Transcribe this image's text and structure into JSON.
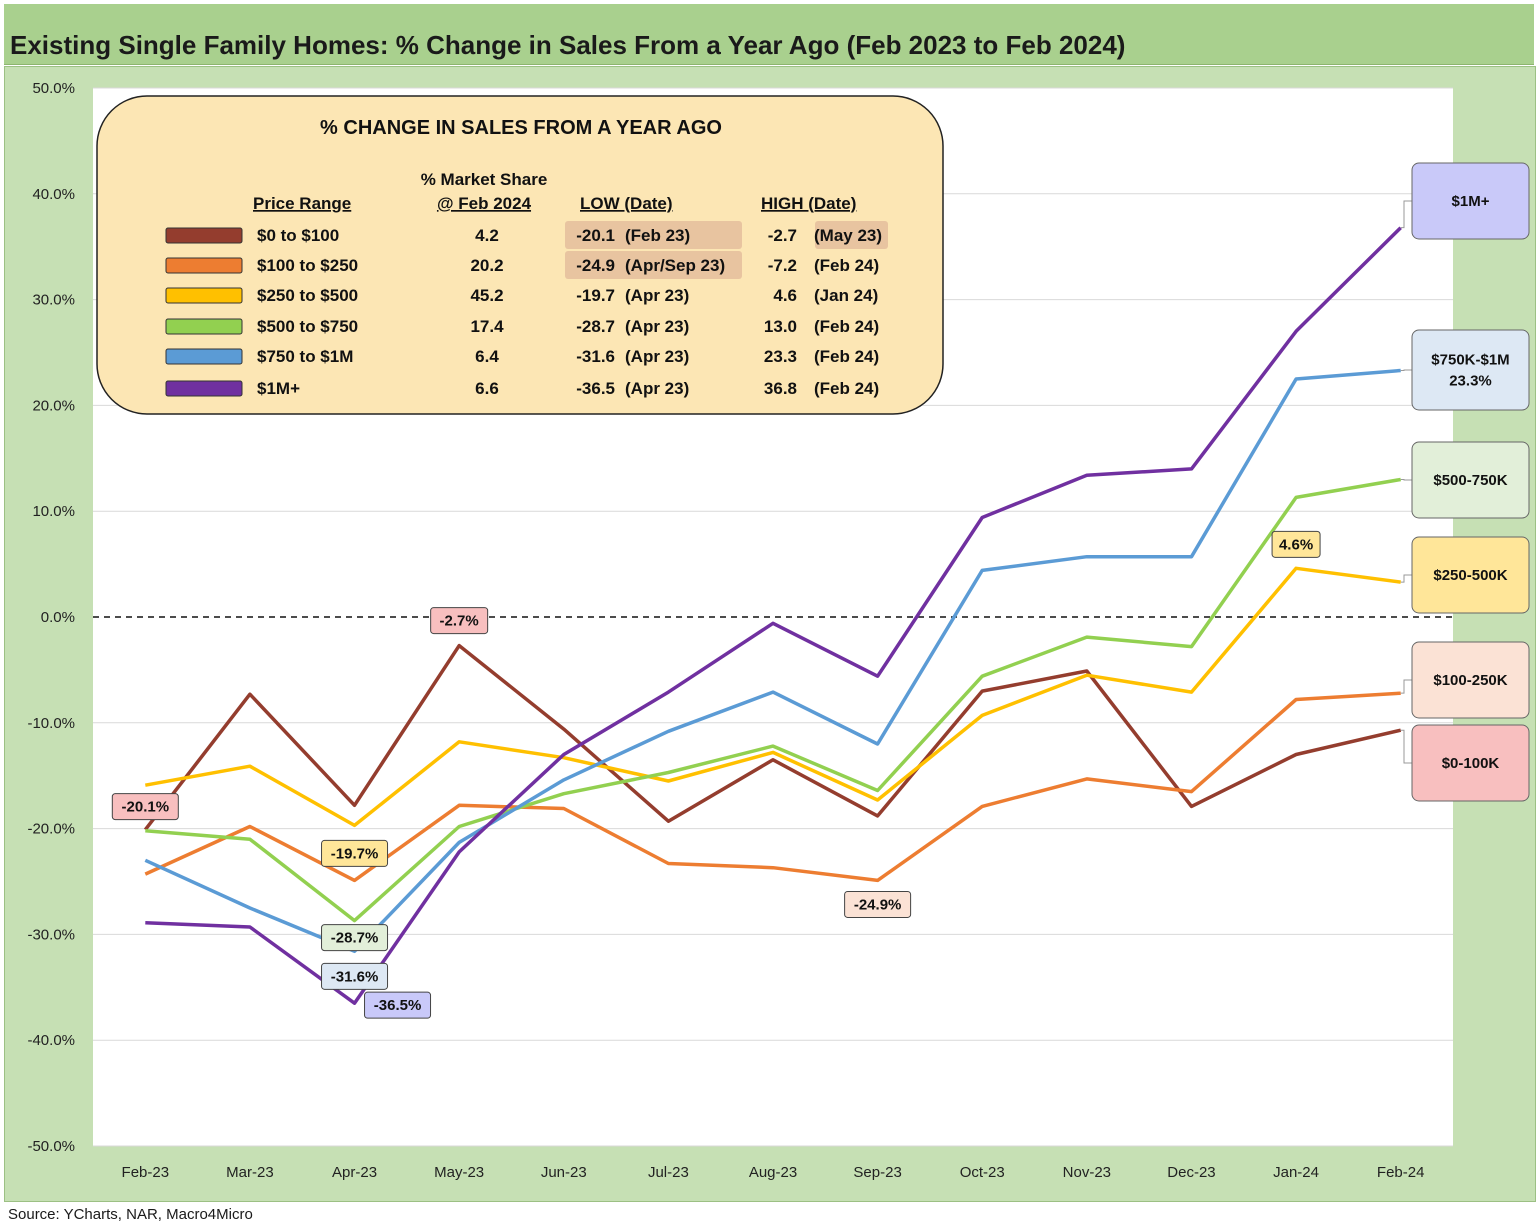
{
  "title": "Existing Single Family Homes: % Change in Sales From a Year Ago (Feb 2023 to Feb 2024)",
  "source": "Source: YCharts, NAR, Macro4Micro",
  "chart_data": {
    "type": "line",
    "categories": [
      "Feb-23",
      "Mar-23",
      "Apr-23",
      "May-23",
      "Jun-23",
      "Jul-23",
      "Aug-23",
      "Sep-23",
      "Oct-23",
      "Nov-23",
      "Dec-23",
      "Jan-24",
      "Feb-24"
    ],
    "ylim": [
      -50,
      50
    ],
    "yticks": [
      50,
      40,
      30,
      20,
      10,
      0,
      -10,
      -20,
      -30,
      -40,
      -50
    ],
    "ytick_labels": [
      "50.0%",
      "40.0%",
      "30.0%",
      "20.0%",
      "10.0%",
      "0.0%",
      "-10.0%",
      "-20.0%",
      "-30.0%",
      "-40.0%",
      "-50.0%"
    ],
    "zero_line": "dashed",
    "series": [
      {
        "name": "$0 to $100",
        "color": "#943d2e",
        "values": [
          -20.1,
          -7.3,
          -17.8,
          -2.7,
          -10.6,
          -19.3,
          -13.5,
          -18.8,
          -7.0,
          -5.1,
          -17.9,
          -13.0,
          -10.7
        ]
      },
      {
        "name": "$100 to $250",
        "color": "#ed7d31",
        "values": [
          -24.3,
          -19.8,
          -24.9,
          -17.8,
          -18.1,
          -23.3,
          -23.7,
          -24.9,
          -17.9,
          -15.3,
          -16.5,
          -7.8,
          -7.2
        ]
      },
      {
        "name": "$250 to $500",
        "color": "#ffc000",
        "values": [
          -15.9,
          -14.1,
          -19.7,
          -11.8,
          -13.3,
          -15.5,
          -12.8,
          -17.3,
          -9.3,
          -5.5,
          -7.1,
          4.6,
          3.3
        ]
      },
      {
        "name": "$500 to $750",
        "color": "#92d050",
        "values": [
          -20.2,
          -21.0,
          -28.7,
          -19.8,
          -16.7,
          -14.7,
          -12.2,
          -16.4,
          -5.6,
          -1.9,
          -2.8,
          11.3,
          13.0
        ]
      },
      {
        "name": "$750 to $1M",
        "color": "#5b9bd5",
        "values": [
          -23.0,
          -27.5,
          -31.6,
          -21.3,
          -15.4,
          -10.8,
          -7.1,
          -12.0,
          4.4,
          5.7,
          5.7,
          22.5,
          23.3
        ]
      },
      {
        "name": "$1M+",
        "color": "#7030a0",
        "values": [
          -28.9,
          -29.3,
          -36.5,
          -22.2,
          -13.0,
          -7.1,
          -0.6,
          -5.6,
          9.4,
          13.4,
          14.0,
          27.0,
          36.8
        ]
      }
    ],
    "point_labels": [
      {
        "series": 0,
        "index": 0,
        "text": "-20.1%",
        "fill": "#f8bfbf"
      },
      {
        "series": 0,
        "index": 3,
        "text": "-2.7%",
        "fill": "#f8bfbf"
      },
      {
        "series": 2,
        "index": 2,
        "text": "-19.7%",
        "fill": "#ffe699"
      },
      {
        "series": 3,
        "index": 2,
        "text": "-28.7%",
        "fill": "#e2efd9"
      },
      {
        "series": 4,
        "index": 2,
        "text": "-31.6%",
        "fill": "#dde8f4"
      },
      {
        "series": 5,
        "index": 2,
        "text": "-36.5%",
        "fill": "#c9c9f9"
      },
      {
        "series": 1,
        "index": 7,
        "text": "-24.9%",
        "fill": "#fbe2d5"
      },
      {
        "series": 2,
        "index": 11,
        "text": "4.6%",
        "fill": "#ffe699"
      }
    ],
    "end_labels": [
      {
        "series": 5,
        "lines": [
          "$1M+"
        ],
        "fill": "#c9c9f9"
      },
      {
        "series": 4,
        "lines": [
          "$750K-$1M",
          "23.3%"
        ],
        "fill": "#dde8f4"
      },
      {
        "series": 3,
        "lines": [
          "$500-750K"
        ],
        "fill": "#e2efd9"
      },
      {
        "series": 2,
        "lines": [
          "$250-500K"
        ],
        "fill": "#ffe699"
      },
      {
        "series": 1,
        "lines": [
          "$100-250K"
        ],
        "fill": "#fbe2d5"
      },
      {
        "series": 0,
        "lines": [
          "$0-100K"
        ],
        "fill": "#f8bfbf"
      }
    ],
    "legend_table": {
      "heading": "% CHANGE IN SALES FROM A YEAR AGO",
      "col_price": "Price Range",
      "col_share_top": "% Market Share",
      "col_share_bottom": "@ Feb 2024",
      "col_low": "LOW  (Date)",
      "col_high": "HIGH  (Date)",
      "rows": [
        {
          "range": "$0 to $100",
          "share": "4.2",
          "low": "-20.1",
          "low_date": "(Feb 23)",
          "high": "-2.7",
          "high_date": "(May 23)",
          "low_hl": true,
          "high_hl": true
        },
        {
          "range": "$100 to $250",
          "share": "20.2",
          "low": "-24.9",
          "low_date": "(Apr/Sep 23)",
          "high": "-7.2",
          "high_date": "(Feb 24)",
          "low_hl": true,
          "high_hl": false
        },
        {
          "range": "$250 to $500",
          "share": "45.2",
          "low": "-19.7",
          "low_date": "(Apr 23)",
          "high": "4.6",
          "high_date": "(Jan 24)",
          "low_hl": false,
          "high_hl": false
        },
        {
          "range": "$500 to $750",
          "share": "17.4",
          "low": "-28.7",
          "low_date": "(Apr 23)",
          "high": "13.0",
          "high_date": "(Feb 24)",
          "low_hl": false,
          "high_hl": false
        },
        {
          "range": "$750 to $1M",
          "share": "6.4",
          "low": "-31.6",
          "low_date": "(Apr 23)",
          "high": "23.3",
          "high_date": "(Feb 24)",
          "low_hl": false,
          "high_hl": false
        },
        {
          "range": "$1M+",
          "share": "6.6",
          "low": "-36.5",
          "low_date": "(Apr 23)",
          "high": "36.8",
          "high_date": "(Feb 24)",
          "low_hl": false,
          "high_hl": false
        }
      ]
    }
  }
}
